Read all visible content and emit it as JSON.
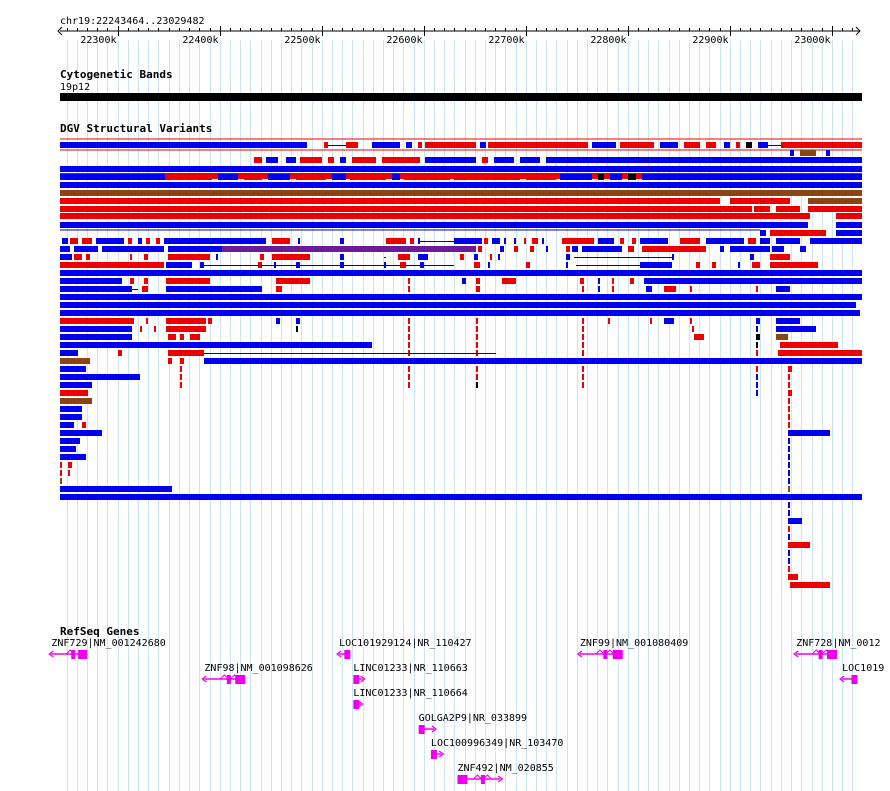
{
  "region": {
    "label": "chr19:22243464..23029482",
    "start": 22243464,
    "end": 23029482,
    "ticks": [
      {
        "pos": 22300000,
        "label": "22300k"
      },
      {
        "pos": 22400000,
        "label": "22400k"
      },
      {
        "pos": 22500000,
        "label": "22500k"
      },
      {
        "pos": 22600000,
        "label": "22600k"
      },
      {
        "pos": 22700000,
        "label": "22700k"
      },
      {
        "pos": 22800000,
        "label": "22800k"
      },
      {
        "pos": 22900000,
        "label": "22900k"
      },
      {
        "pos": 23000000,
        "label": "23000k"
      }
    ],
    "grid_interval": 10000
  },
  "tracks": {
    "cytoband": {
      "title": "Cytogenetic Bands",
      "band": "19p12",
      "color": "#000000"
    },
    "dgv": {
      "title": "DGV Structural Variants",
      "colors": {
        "loss": "#0000ee",
        "gain": "#ee0000",
        "inversion": "#8b4513",
        "complex": "#6a1b9a",
        "other": "#000000"
      }
    },
    "refseq": {
      "title": "RefSeq Genes",
      "color": "#ee00ee"
    }
  },
  "genes": [
    {
      "label": "ZNF729|NM_001242680",
      "start": 22235000,
      "end": 22270000,
      "strand": "-",
      "row": 0
    },
    {
      "label": "ZNF98|NM_001098626",
      "start": 22385000,
      "end": 22425000,
      "strand": "-",
      "row": 1
    },
    {
      "label": "LOC101929124|NR_110427",
      "start": 22517000,
      "end": 22528000,
      "strand": "-",
      "row": 0
    },
    {
      "label": "LINC01233|NR_110663",
      "start": 22531000,
      "end": 22540000,
      "strand": "+",
      "row": 1
    },
    {
      "label": "LINC01233|NR_110664",
      "start": 22531000,
      "end": 22538000,
      "strand": "+",
      "row": 2
    },
    {
      "label": "GOLGA2P9|NR_033899",
      "start": 22595000,
      "end": 22610000,
      "strand": "+",
      "row": 3
    },
    {
      "label": "LOC100996349|NR_103470",
      "start": 22607000,
      "end": 22617000,
      "strand": "+",
      "row": 4
    },
    {
      "label": "ZNF492|NM_020855",
      "start": 22633000,
      "end": 22675000,
      "strand": "+",
      "row": 5
    },
    {
      "label": "ZNF99|NM_001080409",
      "start": 22753000,
      "end": 22795000,
      "strand": "-",
      "row": 0
    },
    {
      "label": "ZNF728|NM_0012",
      "start": 22965000,
      "end": 23005000,
      "strand": "-",
      "row": 0
    },
    {
      "label": "LOC1019",
      "start": 23010000,
      "end": 23025000,
      "strand": "-",
      "row": 1
    }
  ]
}
